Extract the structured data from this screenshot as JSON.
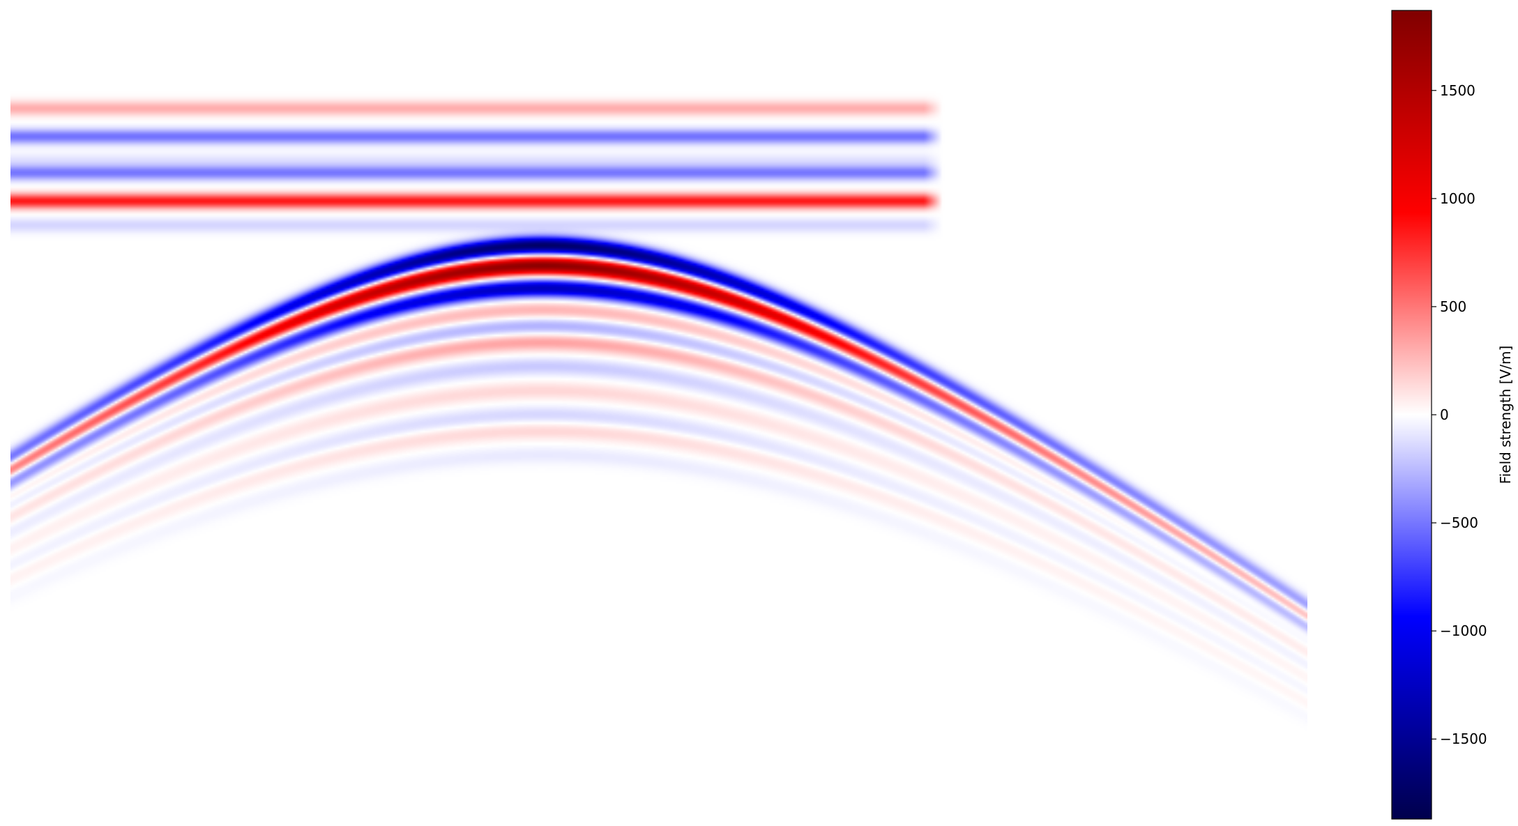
{
  "chart_data": {
    "type": "heatmap",
    "title": "",
    "xlabel": "",
    "ylabel": "",
    "axes_visible": false,
    "grid": false,
    "colormap": "seismic",
    "colormap_stops": [
      "#00004c",
      "#0000ff",
      "#ffffff",
      "#ff0000",
      "#800000"
    ],
    "vmin": -1870,
    "vmax": 1870,
    "colorbar": {
      "label": "Field strength [V/m]",
      "placement": "right",
      "ticks": [
        1500,
        1000,
        500,
        0,
        -500,
        -1000,
        -1500
      ],
      "tick_labels": [
        "1500",
        "1000",
        "500",
        "0",
        "−500",
        "−1000",
        "−1500"
      ]
    },
    "features": [
      {
        "kind": "horizontal_band",
        "depth": 0.12,
        "amplitude": 300
      },
      {
        "kind": "horizontal_band",
        "depth": 0.155,
        "amplitude": -520
      },
      {
        "kind": "horizontal_band",
        "depth": 0.185,
        "amplitude": -100
      },
      {
        "kind": "horizontal_band",
        "depth": 0.2,
        "amplitude": -500
      },
      {
        "kind": "horizontal_band",
        "depth": 0.235,
        "amplitude": 850
      },
      {
        "kind": "horizontal_band",
        "depth": 0.265,
        "amplitude": -150
      },
      {
        "kind": "hyperbola",
        "apex_position": 0.41,
        "apex_depth": 0.29,
        "amplitude": -1750
      },
      {
        "kind": "hyperbola",
        "apex_position": 0.41,
        "apex_depth": 0.315,
        "amplitude": 1800
      },
      {
        "kind": "hyperbola",
        "apex_position": 0.41,
        "apex_depth": 0.343,
        "amplitude": -1300
      },
      {
        "kind": "hyperbola",
        "apex_position": 0.41,
        "apex_depth": 0.37,
        "amplitude": 280
      },
      {
        "kind": "hyperbola",
        "apex_position": 0.41,
        "apex_depth": 0.39,
        "amplitude": -300
      },
      {
        "kind": "hyperbola",
        "apex_position": 0.41,
        "apex_depth": 0.41,
        "amplitude": 350
      },
      {
        "kind": "hyperbola",
        "apex_position": 0.41,
        "apex_depth": 0.44,
        "amplitude": -200
      },
      {
        "kind": "hyperbola",
        "apex_position": 0.41,
        "apex_depth": 0.47,
        "amplitude": 150
      },
      {
        "kind": "hyperbola",
        "apex_position": 0.41,
        "apex_depth": 0.5,
        "amplitude": -150
      },
      {
        "kind": "hyperbola",
        "apex_position": 0.41,
        "apex_depth": 0.52,
        "amplitude": 150
      },
      {
        "kind": "hyperbola",
        "apex_position": 0.41,
        "apex_depth": 0.55,
        "amplitude": -80
      }
    ]
  }
}
